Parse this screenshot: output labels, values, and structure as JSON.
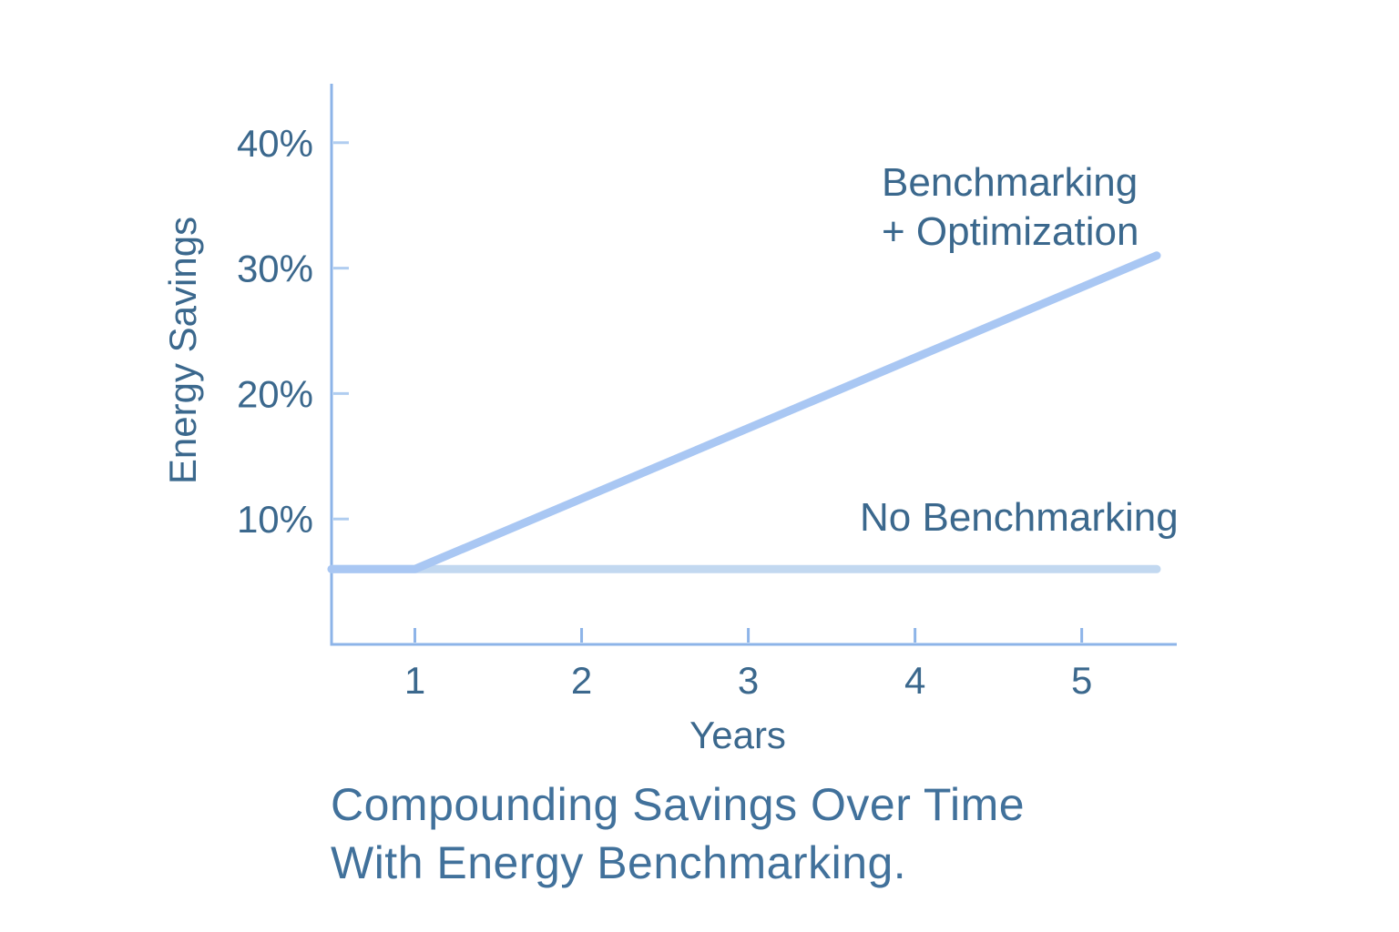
{
  "caption": {
    "line1": "Compounding Savings Over Time",
    "line2": "With Energy Benchmarking."
  },
  "colors": {
    "background": "#ffffff",
    "axis": "#8db4e8",
    "y_tick": "#b0cdf0",
    "x_tick": "#8db4e8",
    "text": "#3b688d",
    "caption_text": "#41719b",
    "series_benchmarking_optimization": "#a9c7f3",
    "series_no_benchmarking": "#c2d8f0"
  },
  "chart_data": {
    "type": "line",
    "title": "Compounding Savings Over Time With Energy Benchmarking.",
    "xlabel": "Years",
    "ylabel": "Energy Savings",
    "xlim": [
      0.5,
      5.57
    ],
    "ylim": [
      0,
      44.7
    ],
    "grid": false,
    "legend_position": "inline annotations near lines",
    "xticks": [
      {
        "value": 1,
        "label": "1"
      },
      {
        "value": 2,
        "label": "2"
      },
      {
        "value": 3,
        "label": "3"
      },
      {
        "value": 4,
        "label": "4"
      },
      {
        "value": 5,
        "label": "5"
      }
    ],
    "yticks": [
      {
        "value": 10,
        "label": "10%"
      },
      {
        "value": 20,
        "label": "20%"
      },
      {
        "value": 30,
        "label": "30%"
      },
      {
        "value": 40,
        "label": "40%"
      }
    ],
    "series": [
      {
        "name": "Benchmarking + Optimization",
        "slug": "benchmarking-optimization",
        "label_lines": [
          "Benchmarking",
          "+ Optimization"
        ],
        "color": "#a9c7f3",
        "points": [
          [
            0.5,
            6
          ],
          [
            1,
            6
          ],
          [
            5.45,
            31
          ]
        ]
      },
      {
        "name": "No Benchmarking",
        "slug": "no-benchmarking",
        "label_lines": [
          "No Benchmarking"
        ],
        "color": "#c2d8f0",
        "points": [
          [
            0.5,
            6
          ],
          [
            5.45,
            6
          ]
        ]
      }
    ]
  }
}
